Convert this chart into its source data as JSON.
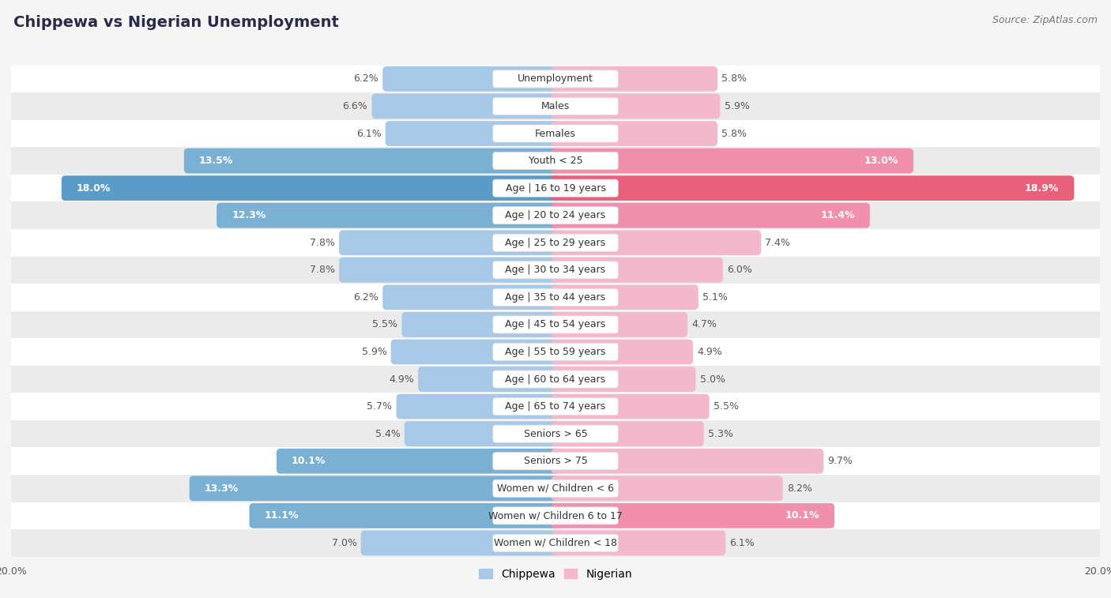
{
  "title": "Chippewa vs Nigerian Unemployment",
  "source": "Source: ZipAtlas.com",
  "categories": [
    "Unemployment",
    "Males",
    "Females",
    "Youth < 25",
    "Age | 16 to 19 years",
    "Age | 20 to 24 years",
    "Age | 25 to 29 years",
    "Age | 30 to 34 years",
    "Age | 35 to 44 years",
    "Age | 45 to 54 years",
    "Age | 55 to 59 years",
    "Age | 60 to 64 years",
    "Age | 65 to 74 years",
    "Seniors > 65",
    "Seniors > 75",
    "Women w/ Children < 6",
    "Women w/ Children 6 to 17",
    "Women w/ Children < 18"
  ],
  "chippewa": [
    6.2,
    6.6,
    6.1,
    13.5,
    18.0,
    12.3,
    7.8,
    7.8,
    6.2,
    5.5,
    5.9,
    4.9,
    5.7,
    5.4,
    10.1,
    13.3,
    11.1,
    7.0
  ],
  "nigerian": [
    5.8,
    5.9,
    5.8,
    13.0,
    18.9,
    11.4,
    7.4,
    6.0,
    5.1,
    4.7,
    4.9,
    5.0,
    5.5,
    5.3,
    9.7,
    8.2,
    10.1,
    6.1
  ],
  "chippewa_color_low": "#a8c8e8",
  "chippewa_color_mid": "#7ab0d4",
  "chippewa_color_high": "#5b9bc7",
  "nigerian_color_low": "#f4b8cc",
  "nigerian_color_mid": "#f090ac",
  "nigerian_color_high": "#e8607a",
  "bg_color": "#f5f5f5",
  "row_color_light": "#ffffff",
  "row_color_dark": "#ebebeb",
  "max_val": 20.0,
  "label_fontsize": 9.0,
  "title_fontsize": 14,
  "source_fontsize": 9,
  "highlight_thresh": 10.0
}
